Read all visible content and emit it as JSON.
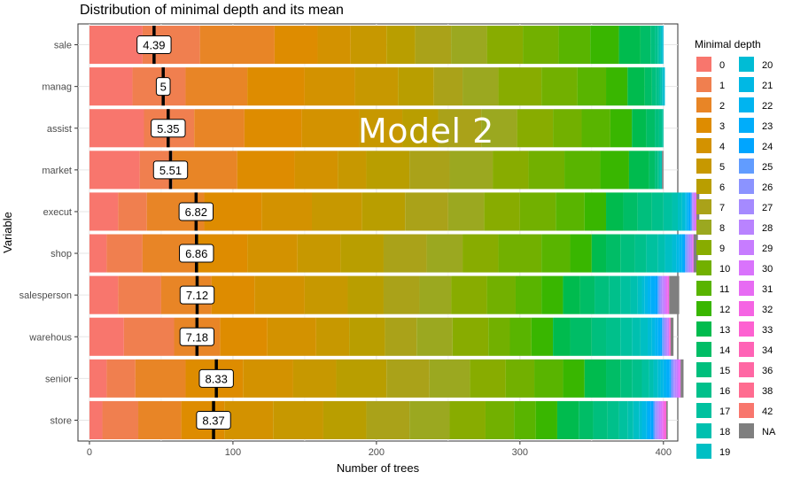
{
  "chart_data": {
    "type": "bar",
    "title": "Distribution of minimal depth and its mean",
    "xlabel": "Number of trees",
    "ylabel": "Variable",
    "xlim": [
      -8,
      410
    ],
    "x_ticks": [
      0,
      100,
      200,
      300,
      400
    ],
    "grid": true,
    "legend_position": "right",
    "legend_title": "Minimal depth",
    "annotation": "Model 2",
    "depth_levels": [
      "0",
      "1",
      "2",
      "3",
      "4",
      "5",
      "6",
      "7",
      "8",
      "9",
      "10",
      "11",
      "12",
      "13",
      "14",
      "15",
      "16",
      "17",
      "18",
      "19",
      "20",
      "21",
      "22",
      "23",
      "24",
      "25",
      "26",
      "27",
      "28",
      "29",
      "30",
      "31",
      "32",
      "33",
      "34",
      "36",
      "38",
      "42",
      "NA"
    ],
    "depth_colors": [
      "#F8766D",
      "#F07F4F",
      "#E88526",
      "#DE8C00",
      "#D39200",
      "#C79800",
      "#B99E00",
      "#AAA219",
      "#9BA820",
      "#88AC00",
      "#72B000",
      "#59B400",
      "#39B600",
      "#00BB4E",
      "#00BD66",
      "#00BF7D",
      "#00C08B",
      "#00C19F",
      "#00C0AF",
      "#00BFC4",
      "#00BCD5",
      "#00B8E4",
      "#00B4F0",
      "#00ADFA",
      "#00A5FF",
      "#619CFF",
      "#8B93FF",
      "#A58AFF",
      "#B983FF",
      "#C77CFF",
      "#D973FC",
      "#E76BF3",
      "#F564E3",
      "#FD61D1",
      "#FF63B6",
      "#FF67A4",
      "#FF6C90",
      "#F8766D",
      "#7F7F7F"
    ],
    "variables": [
      "sale",
      "manag",
      "assist",
      "market",
      "execut",
      "shop",
      "salesperson",
      "warehous",
      "senior",
      "store"
    ],
    "mean_depth": [
      4.39,
      5,
      5.35,
      5.51,
      6.82,
      6.86,
      7.12,
      7.18,
      8.33,
      8.37
    ],
    "mean_labels": [
      "4.39",
      "5",
      "5.35",
      "5.51",
      "6.82",
      "6.86",
      "7.12",
      "7.18",
      "8.33",
      "8.37"
    ],
    "series_counts": [
      [
        37,
        40,
        52,
        30,
        23,
        25,
        20,
        25,
        25,
        25,
        25,
        22,
        20,
        15,
        7,
        3,
        2,
        1,
        1,
        1,
        1,
        0,
        0,
        0,
        0,
        0,
        0,
        0,
        0,
        0,
        0,
        0,
        0,
        0,
        0,
        0,
        0,
        0,
        0
      ],
      [
        30,
        37,
        43,
        40,
        35,
        30,
        25,
        20,
        25,
        30,
        25,
        20,
        15,
        12,
        5,
        3,
        2,
        1,
        1,
        1,
        1,
        0,
        0,
        0,
        0,
        0,
        0,
        0,
        0,
        0,
        0,
        0,
        0,
        0,
        0,
        0,
        0,
        0,
        0
      ],
      [
        38,
        35,
        35,
        40,
        40,
        30,
        25,
        30,
        25,
        25,
        20,
        20,
        15,
        10,
        6,
        3,
        2,
        1,
        0,
        0,
        0,
        0,
        0,
        0,
        0,
        0,
        0,
        0,
        0,
        0,
        0,
        0,
        0,
        0,
        0,
        0,
        0,
        0,
        0
      ],
      [
        35,
        23,
        45,
        40,
        30,
        20,
        30,
        28,
        30,
        25,
        25,
        25,
        20,
        14,
        4,
        2,
        1,
        1,
        1,
        0,
        0,
        0,
        0,
        0,
        0,
        0,
        0,
        0,
        0,
        0,
        0,
        0,
        0,
        0,
        0,
        0,
        0,
        0,
        1
      ],
      [
        20,
        20,
        40,
        40,
        35,
        35,
        30,
        30,
        25,
        25,
        25,
        20,
        15,
        12,
        10,
        10,
        8,
        6,
        4,
        3,
        2,
        1,
        1,
        1,
        1,
        1,
        0,
        0,
        1,
        1,
        0,
        1,
        0,
        0,
        0,
        0,
        0,
        0,
        2
      ],
      [
        12,
        25,
        38,
        35,
        35,
        30,
        30,
        30,
        25,
        25,
        30,
        20,
        15,
        10,
        10,
        10,
        8,
        8,
        5,
        5,
        3,
        2,
        2,
        1,
        1,
        1,
        1,
        1,
        1,
        1,
        0,
        1,
        0,
        0,
        0,
        0,
        0,
        0,
        3
      ],
      [
        20,
        30,
        35,
        30,
        35,
        30,
        25,
        25,
        22,
        25,
        20,
        18,
        15,
        12,
        10,
        10,
        8,
        7,
        5,
        3,
        2,
        2,
        2,
        3,
        2,
        1,
        1,
        1,
        1,
        1,
        1,
        1,
        1,
        0,
        0,
        0,
        0,
        0,
        7
      ],
      [
        24,
        35,
        32,
        33,
        34,
        23,
        25,
        22,
        25,
        25,
        15,
        15,
        15,
        12,
        15,
        10,
        10,
        8,
        6,
        5,
        3,
        2,
        2,
        2,
        1,
        1,
        1,
        1,
        1,
        1,
        0,
        0,
        0,
        1,
        0,
        0,
        0,
        0,
        2
      ],
      [
        12,
        20,
        35,
        40,
        35,
        30,
        35,
        30,
        28,
        25,
        20,
        20,
        15,
        15,
        10,
        8,
        7,
        5,
        3,
        3,
        2,
        2,
        2,
        2,
        1,
        1,
        1,
        1,
        1,
        1,
        1,
        1,
        0,
        0,
        0,
        0,
        0,
        0,
        2
      ],
      [
        9,
        25,
        30,
        30,
        34,
        35,
        30,
        30,
        28,
        25,
        20,
        15,
        15,
        15,
        10,
        10,
        8,
        6,
        4,
        4,
        2,
        3,
        1,
        2,
        2,
        1,
        1,
        1,
        1,
        1,
        1,
        1,
        1,
        1,
        0,
        0,
        0,
        0,
        1
      ]
    ]
  }
}
